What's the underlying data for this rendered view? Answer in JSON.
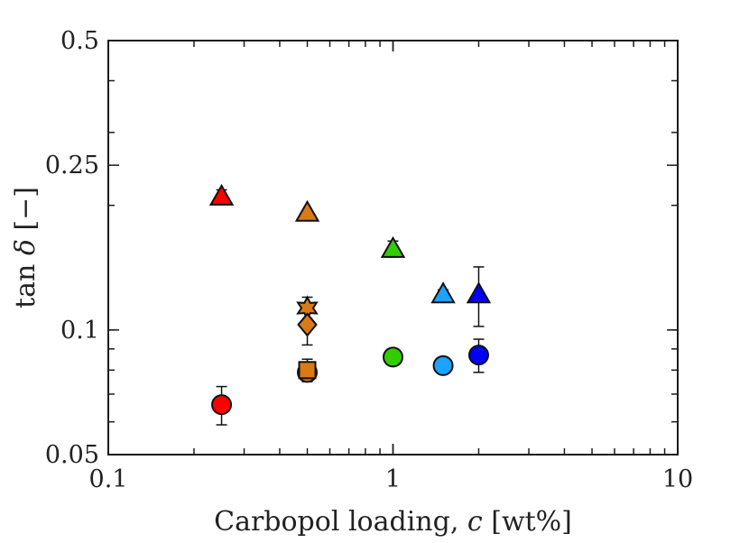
{
  "chart_data": {
    "type": "scatter",
    "title": "",
    "xlabel": "Carbopol loading, c [wt%]",
    "xlabel_parts": [
      "Carbopol loading, ",
      "c",
      " [wt%]"
    ],
    "ylabel": "tan δ [−]",
    "ylabel_parts": [
      "tan ",
      "δ",
      " [−]"
    ],
    "xscale": "log",
    "yscale": "log",
    "xlim": [
      0.1,
      10
    ],
    "ylim": [
      0.05,
      0.5
    ],
    "grid": false,
    "x_ticks": [
      0.1,
      1,
      10
    ],
    "x_tick_labels": [
      "0.1",
      "1",
      "10"
    ],
    "y_ticks": [
      0.05,
      0.1,
      0.25,
      0.5
    ],
    "y_tick_labels": [
      "0.05",
      "0.1",
      "0.25",
      "0.5"
    ],
    "series": [
      {
        "name": "triangles",
        "marker": "triangle",
        "points": [
          {
            "x": 0.25,
            "y": 0.21,
            "err": 0.008,
            "color": "#ff0000"
          },
          {
            "x": 0.5,
            "y": 0.192,
            "err": 0.003,
            "color": "#d97a14"
          },
          {
            "x": 1.0,
            "y": 0.157,
            "err": 0.007,
            "color": "#33cc00"
          },
          {
            "x": 1.5,
            "y": 0.122,
            "err": 0.003,
            "color": "#1aa3ff"
          },
          {
            "x": 2.0,
            "y": 0.122,
            "err": 0.02,
            "color": "#0000ff"
          }
        ]
      },
      {
        "name": "circles",
        "marker": "circle",
        "points": [
          {
            "x": 0.25,
            "y": 0.066,
            "err": 0.007,
            "color": "#ff0000"
          },
          {
            "x": 0.5,
            "y": 0.079,
            "err": 0.003,
            "color": "#d97a14"
          },
          {
            "x": 1.0,
            "y": 0.086,
            "err": 0.003,
            "color": "#33cc00"
          },
          {
            "x": 1.5,
            "y": 0.082,
            "err": 0.002,
            "color": "#1aa3ff"
          },
          {
            "x": 2.0,
            "y": 0.087,
            "err": 0.008,
            "color": "#0000ff"
          }
        ]
      },
      {
        "name": "hexagram",
        "marker": "star",
        "points": [
          {
            "x": 0.5,
            "y": 0.113,
            "err": 0.007,
            "color": "#d97a14"
          }
        ]
      },
      {
        "name": "diamond",
        "marker": "diamond",
        "points": [
          {
            "x": 0.5,
            "y": 0.103,
            "err": 0.011,
            "color": "#d97a14"
          }
        ]
      },
      {
        "name": "square",
        "marker": "square",
        "points": [
          {
            "x": 0.5,
            "y": 0.08,
            "err": 0.005,
            "color": "#d97a14"
          }
        ]
      }
    ]
  }
}
